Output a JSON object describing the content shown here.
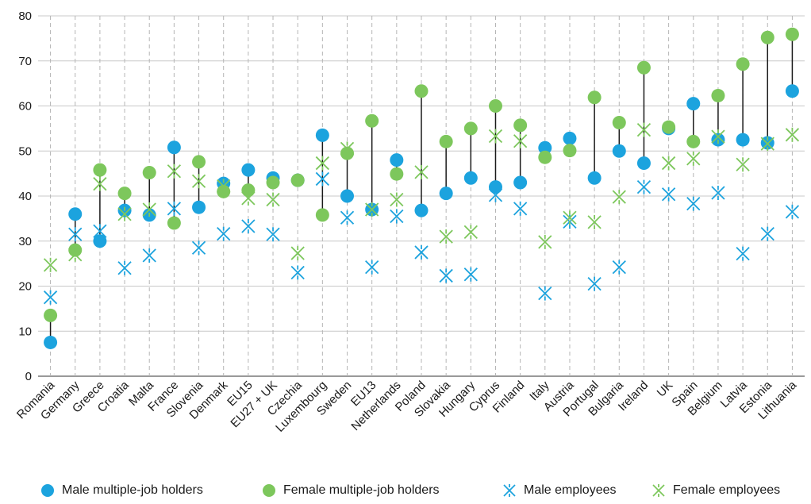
{
  "chart_data": {
    "type": "scatter",
    "title": "",
    "xlabel": "",
    "ylabel": "",
    "ylim": [
      0,
      80
    ],
    "yticks": [
      0,
      10,
      20,
      30,
      40,
      50,
      60,
      70,
      80
    ],
    "grid": {
      "horizontal": true,
      "vertical_dashed": true
    },
    "legend_position": "bottom",
    "categories": [
      "Romania",
      "Germany",
      "Greece",
      "Croatia",
      "Malta",
      "France",
      "Slovenia",
      "Denmark",
      "EU15",
      "EU27 + UK",
      "Czechia",
      "Luxembourg",
      "Sweden",
      "EU13",
      "Netherlands",
      "Poland",
      "Slovakia",
      "Hungary",
      "Cyprus",
      "Finland",
      "Italy",
      "Austria",
      "Portugal",
      "Bulgaria",
      "Ireland",
      "UK",
      "Spain",
      "Belgium",
      "Latvia",
      "Estonia",
      "Lithuania"
    ],
    "series": [
      {
        "name": "Male multiple-job holders",
        "marker": "circle",
        "color": "#1ca3de",
        "values": [
          7.5,
          36,
          30,
          36.8,
          35.8,
          50.8,
          37.5,
          42.8,
          45.8,
          44,
          43.5,
          53.5,
          40,
          37,
          48,
          36.8,
          40.6,
          44,
          42,
          43,
          50.7,
          52.8,
          44,
          50,
          47.3,
          55,
          60.5,
          52.5,
          52.5,
          51.8,
          63.3
        ]
      },
      {
        "name": "Female multiple-job holders",
        "marker": "circle",
        "color": "#7dc75c",
        "values": [
          13.5,
          28,
          45.8,
          40.6,
          45.2,
          34,
          47.6,
          41,
          41.3,
          43,
          43.5,
          35.8,
          49.5,
          56.7,
          44.9,
          63.3,
          52.1,
          55,
          60,
          55.7,
          48.6,
          50.1,
          61.9,
          56.3,
          68.5,
          55.3,
          52.1,
          62.3,
          69.3,
          75.2,
          75.9
        ]
      },
      {
        "name": "Male employees",
        "marker": "asterisk",
        "color": "#1ca3de",
        "values": [
          17.5,
          31.5,
          32.2,
          24,
          26.8,
          37.2,
          28.5,
          31.6,
          33.3,
          31.5,
          23,
          43.8,
          35.2,
          24.2,
          35.5,
          27.5,
          22.3,
          22.6,
          40.2,
          37.2,
          18.4,
          34.3,
          20.5,
          24.2,
          42,
          40.4,
          38.3,
          40.7,
          27.2,
          31.6,
          36.5
        ]
      },
      {
        "name": "Female employees",
        "marker": "x",
        "color": "#7dc75c",
        "values": [
          24.7,
          27,
          42.7,
          36,
          37,
          45.5,
          43.3,
          42.2,
          39.5,
          39.2,
          27.3,
          47.3,
          50.5,
          37,
          39.2,
          45.3,
          31,
          32,
          53.3,
          52.2,
          29.8,
          35.2,
          34.2,
          39.8,
          54.7,
          47.3,
          48.3,
          53.2,
          47,
          51.6,
          53.6
        ]
      }
    ]
  }
}
